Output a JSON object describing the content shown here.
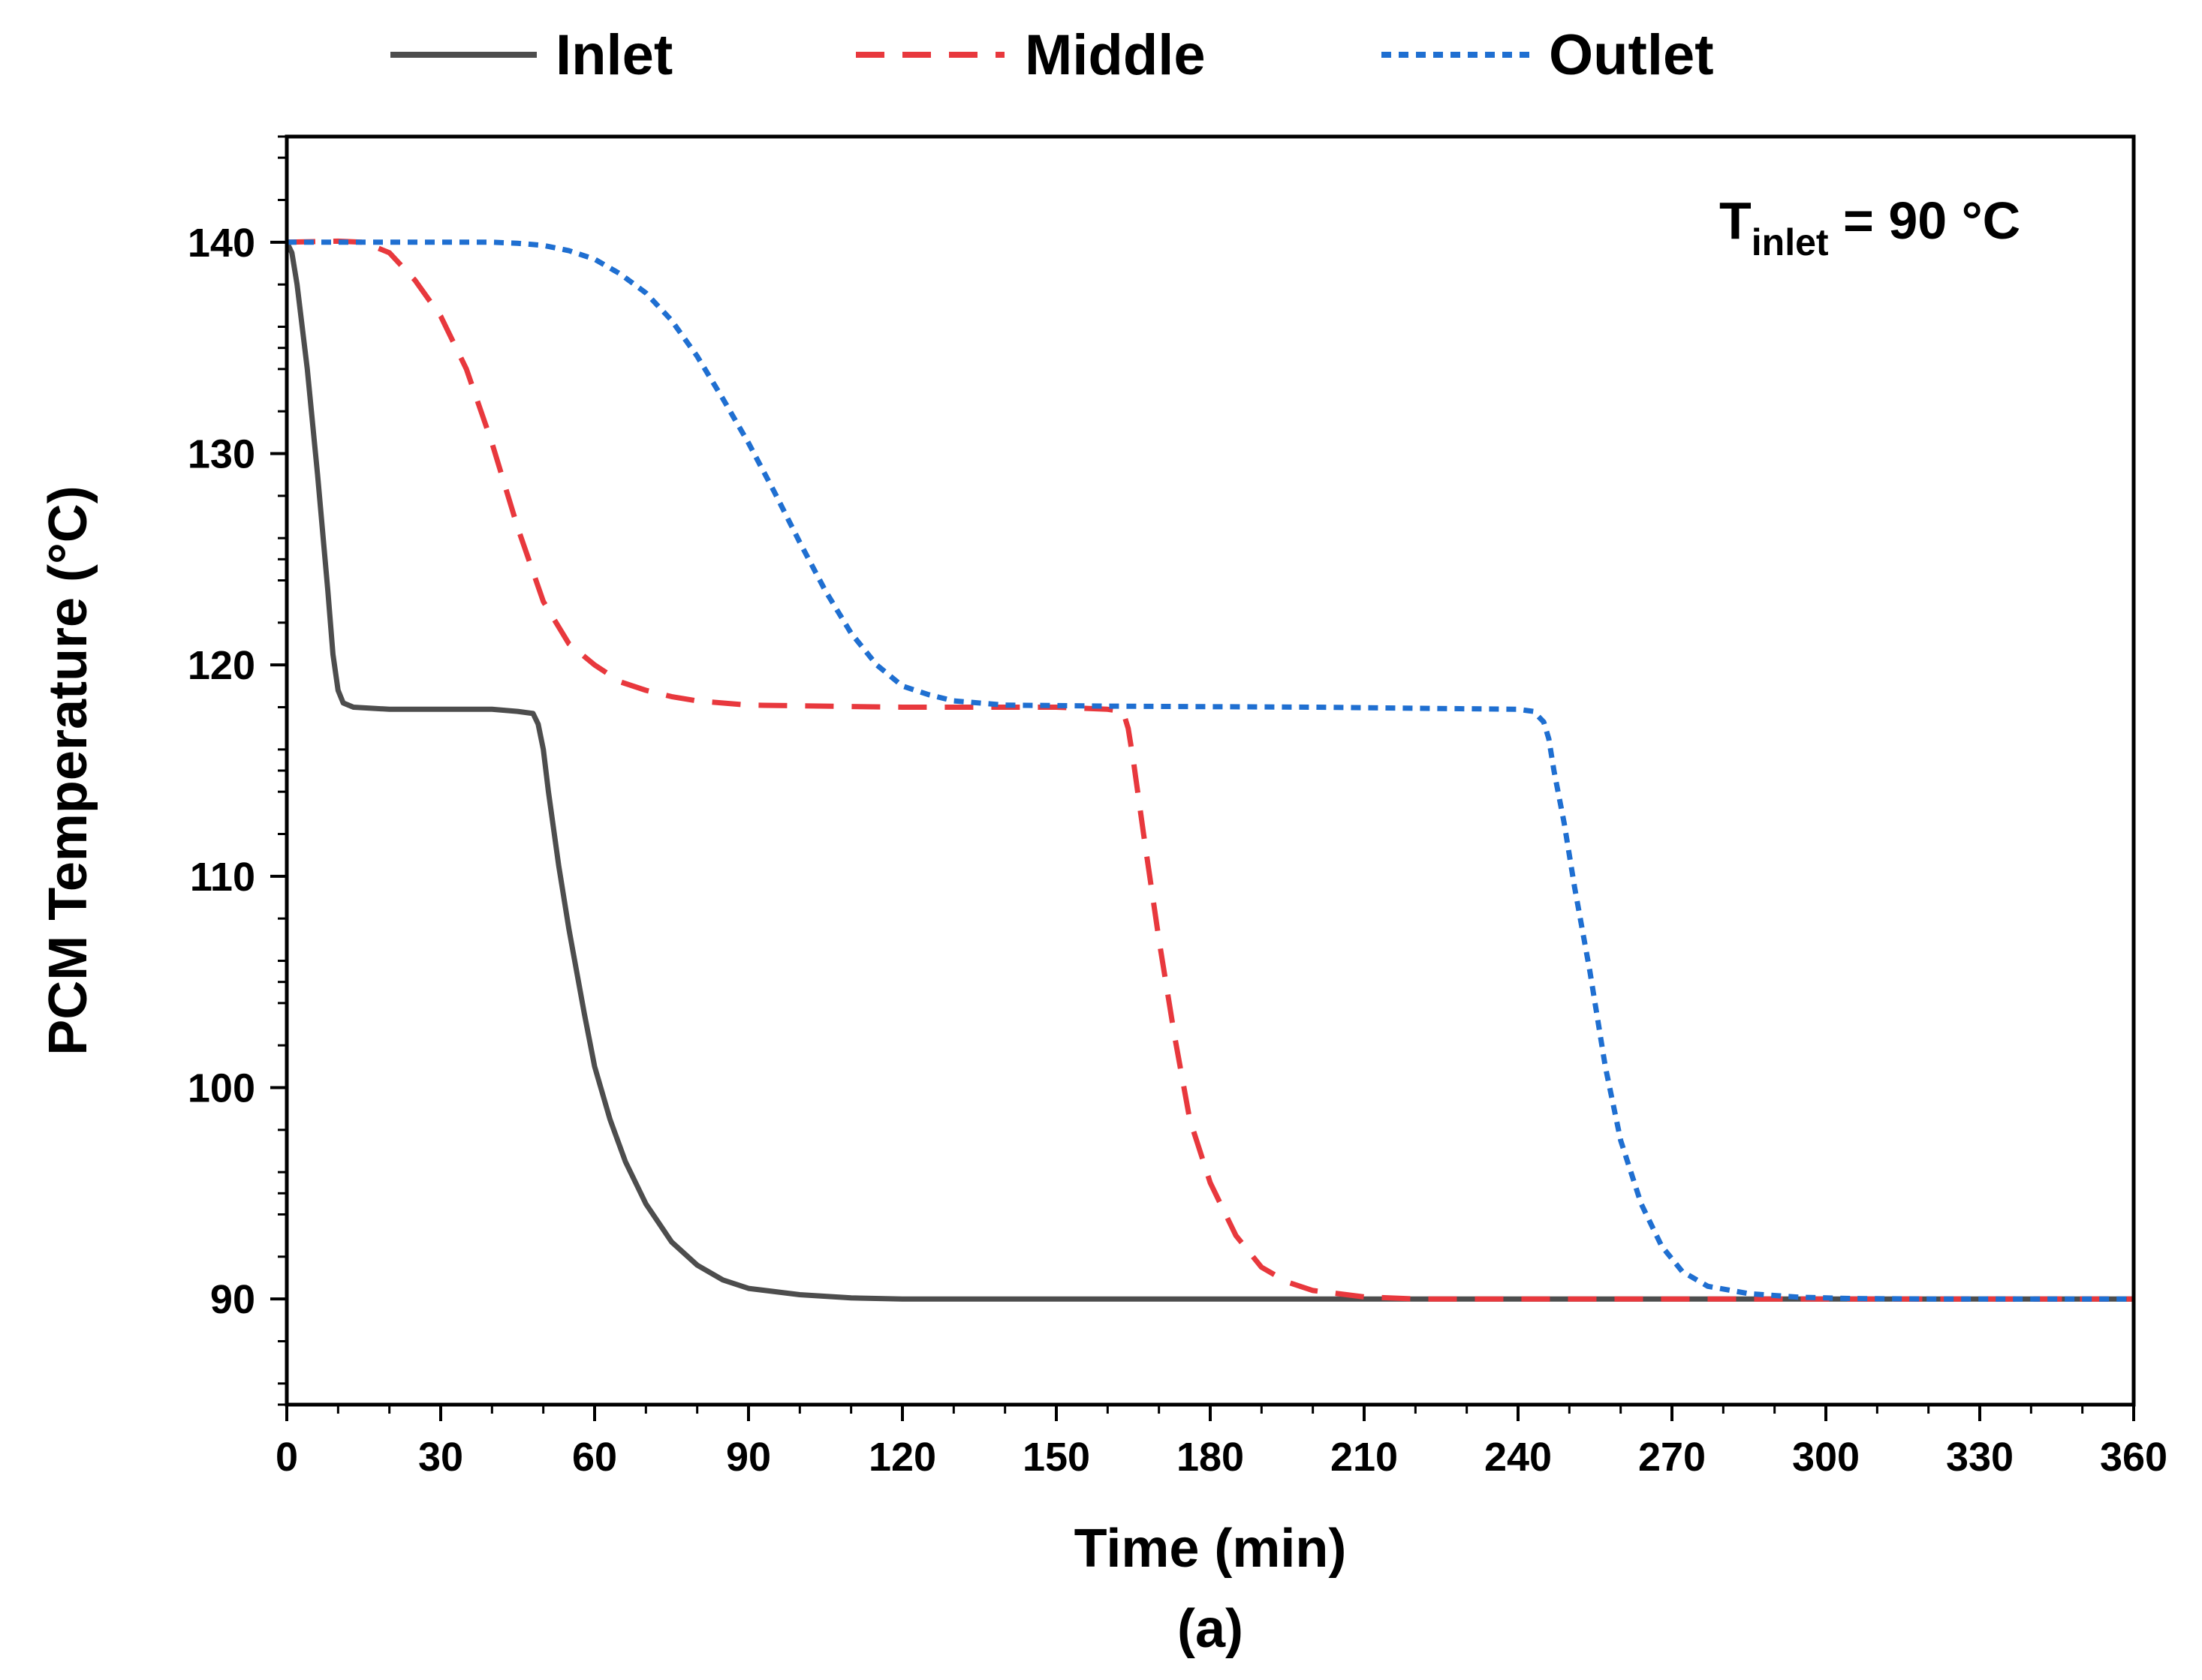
{
  "chart_data": {
    "type": "line",
    "title": "",
    "xlabel": "Time (min)",
    "ylabel": "PCM Temperature (°C)",
    "caption": "(a)",
    "annotation": {
      "main": "T",
      "sub": "inlet",
      "rest": " = 90 °C"
    },
    "xlim": [
      0,
      360
    ],
    "ylim": [
      85,
      145
    ],
    "xticks": [
      0,
      30,
      60,
      90,
      120,
      150,
      180,
      210,
      240,
      270,
      300,
      330,
      360
    ],
    "xtick_labels": [
      "0",
      "30",
      "60",
      "90",
      "120",
      "150",
      "180",
      "210",
      "240",
      "270",
      "300",
      "330",
      "360"
    ],
    "yticks": [
      90,
      100,
      110,
      120,
      130,
      140
    ],
    "ytick_labels": [
      "90",
      "100",
      "110",
      "120",
      "130",
      "140"
    ],
    "legend_position": "top-outside",
    "grid": false,
    "series": [
      {
        "name": "Inlet",
        "color": "#4d4d4d",
        "style": "solid",
        "points": [
          [
            0,
            140
          ],
          [
            1,
            139.5
          ],
          [
            2,
            138
          ],
          [
            4,
            134
          ],
          [
            6,
            129
          ],
          [
            8,
            123.5
          ],
          [
            9,
            120.5
          ],
          [
            10,
            118.8
          ],
          [
            11,
            118.2
          ],
          [
            13,
            118.0
          ],
          [
            20,
            117.9
          ],
          [
            40,
            117.9
          ],
          [
            45,
            117.8
          ],
          [
            48,
            117.7
          ],
          [
            49,
            117.2
          ],
          [
            50,
            116.0
          ],
          [
            51,
            114.0
          ],
          [
            53,
            110.5
          ],
          [
            55,
            107.5
          ],
          [
            58,
            103.5
          ],
          [
            60,
            101.0
          ],
          [
            63,
            98.5
          ],
          [
            66,
            96.5
          ],
          [
            70,
            94.5
          ],
          [
            75,
            92.7
          ],
          [
            80,
            91.6
          ],
          [
            85,
            90.9
          ],
          [
            90,
            90.5
          ],
          [
            100,
            90.2
          ],
          [
            110,
            90.05
          ],
          [
            120,
            90.0
          ],
          [
            360,
            90.0
          ]
        ]
      },
      {
        "name": "Middle",
        "color": "#e8383d",
        "style": "dashed",
        "points": [
          [
            0,
            140
          ],
          [
            10,
            140.05
          ],
          [
            15,
            140.0
          ],
          [
            20,
            139.5
          ],
          [
            25,
            138.2
          ],
          [
            30,
            136.5
          ],
          [
            35,
            134.0
          ],
          [
            40,
            130.5
          ],
          [
            45,
            126.5
          ],
          [
            50,
            123.0
          ],
          [
            55,
            121.0
          ],
          [
            60,
            120.0
          ],
          [
            65,
            119.2
          ],
          [
            70,
            118.8
          ],
          [
            75,
            118.5
          ],
          [
            80,
            118.3
          ],
          [
            90,
            118.1
          ],
          [
            120,
            118.0
          ],
          [
            150,
            118.0
          ],
          [
            160,
            117.9
          ],
          [
            163,
            117.8
          ],
          [
            164,
            117.0
          ],
          [
            165,
            115.5
          ],
          [
            167,
            112.0
          ],
          [
            170,
            107.0
          ],
          [
            173,
            102.5
          ],
          [
            176,
            98.5
          ],
          [
            180,
            95.5
          ],
          [
            185,
            93.0
          ],
          [
            190,
            91.5
          ],
          [
            195,
            90.8
          ],
          [
            200,
            90.4
          ],
          [
            210,
            90.1
          ],
          [
            220,
            90.0
          ],
          [
            360,
            90.0
          ]
        ]
      },
      {
        "name": "Outlet",
        "color": "#1f6fd1",
        "style": "dotted",
        "points": [
          [
            0,
            140
          ],
          [
            30,
            140.0
          ],
          [
            40,
            140.0
          ],
          [
            45,
            139.95
          ],
          [
            50,
            139.85
          ],
          [
            55,
            139.6
          ],
          [
            60,
            139.2
          ],
          [
            65,
            138.5
          ],
          [
            70,
            137.6
          ],
          [
            75,
            136.3
          ],
          [
            80,
            134.6
          ],
          [
            85,
            132.6
          ],
          [
            90,
            130.5
          ],
          [
            95,
            128.2
          ],
          [
            100,
            125.8
          ],
          [
            105,
            123.5
          ],
          [
            110,
            121.5
          ],
          [
            115,
            120.0
          ],
          [
            120,
            119.0
          ],
          [
            125,
            118.6
          ],
          [
            130,
            118.3
          ],
          [
            140,
            118.1
          ],
          [
            160,
            118.05
          ],
          [
            200,
            118.0
          ],
          [
            240,
            117.9
          ],
          [
            243,
            117.8
          ],
          [
            245,
            117.3
          ],
          [
            246,
            116.5
          ],
          [
            247,
            115.0
          ],
          [
            249,
            112.5
          ],
          [
            251,
            109.5
          ],
          [
            254,
            105.5
          ],
          [
            257,
            101.0
          ],
          [
            260,
            97.5
          ],
          [
            264,
            94.5
          ],
          [
            268,
            92.5
          ],
          [
            272,
            91.3
          ],
          [
            277,
            90.6
          ],
          [
            285,
            90.25
          ],
          [
            295,
            90.08
          ],
          [
            305,
            90.02
          ],
          [
            320,
            90.0
          ],
          [
            360,
            90.0
          ]
        ]
      }
    ]
  }
}
